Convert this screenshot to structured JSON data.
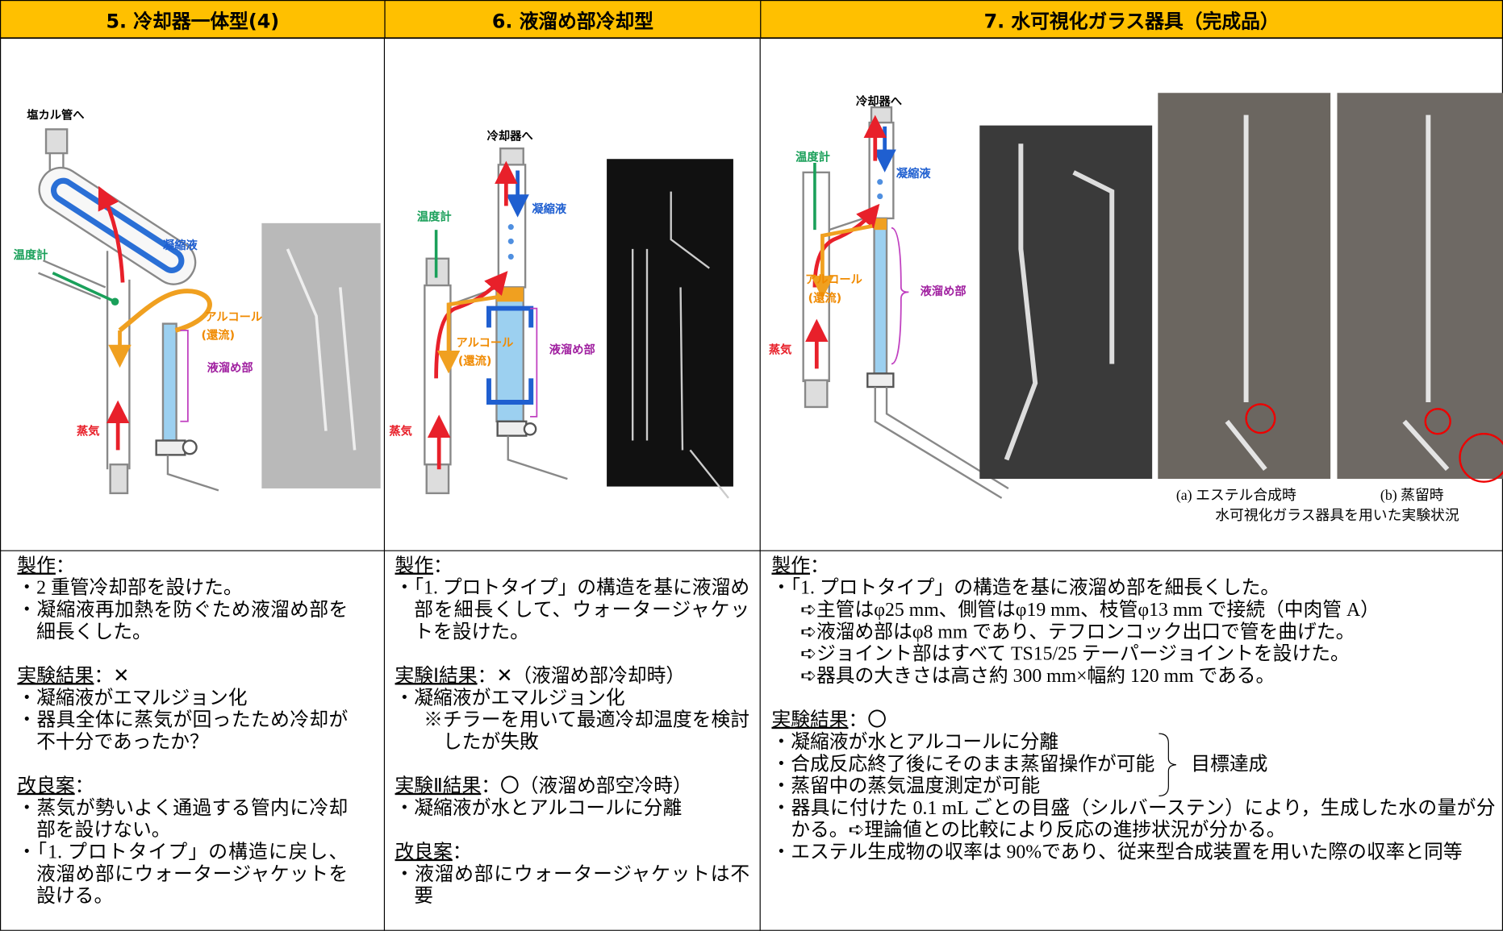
{
  "columns": [
    {
      "header": "5. 冷却器一体型(4)",
      "figure_labels": [
        "塩カル管へ",
        "凝縮液",
        "温度計",
        "アルコール",
        "(還流)",
        "液溜め部",
        "蒸気"
      ],
      "sections": [
        {
          "heading": "製作",
          "suffix": "：",
          "items": [
            "・2 重管冷却部を設けた。",
            "・凝縮液再加熱を防ぐため液溜め部を細長くした。"
          ]
        },
        {
          "heading": "実験結果",
          "suffix": "：✕",
          "items": [
            "・凝縮液がエマルジョン化",
            "・器具全体に蒸気が回ったため冷却が不十分であったか？"
          ]
        },
        {
          "heading": "改良案",
          "suffix": "：",
          "items": [
            "・蒸気が勢いよく通過する管内に冷却部を設けない。",
            "・「1. プロトタイプ」の構造に戻し、液溜め部にウォータージャケットを設ける。"
          ]
        }
      ]
    },
    {
      "header": "6. 液溜め部冷却型",
      "figure_labels": [
        "冷却器へ",
        "凝縮液",
        "温度計",
        "アルコール",
        "(還流)",
        "液溜め部",
        "蒸気"
      ],
      "sections": [
        {
          "heading": "製作",
          "suffix": "：",
          "items": [
            "・「1. プロトタイプ」の構造を基に液溜め部を細長くして、ウォータージャケットを設けた。"
          ]
        },
        {
          "heading": "実験Ⅰ結果",
          "suffix": "：✕（液溜め部冷却時）",
          "items": [
            "・凝縮液がエマルジョン化",
            "※チラーを用いて最適冷却温度を検討したが失敗"
          ]
        },
        {
          "heading": "実験Ⅱ結果",
          "suffix": "：〇（液溜め部空冷時）",
          "items": [
            "・凝縮液が水とアルコールに分離"
          ]
        },
        {
          "heading": "改良案",
          "suffix": "：",
          "items": [
            "・液溜め部にウォータージャケットは不要"
          ]
        }
      ]
    },
    {
      "header": "7. 水可視化ガラス器具（完成品）",
      "figure_labels": [
        "冷却器へ",
        "温度計",
        "凝縮液",
        "アルコール",
        "(還流)",
        "液溜め部",
        "蒸気"
      ],
      "captions": [
        "(a) エステル合成時",
        "(b) 蒸留時",
        "水可視化ガラス器具を用いた実験状況"
      ],
      "sections": [
        {
          "heading": "製作",
          "suffix": "：",
          "items": [
            "・「1. プロトタイプ」の構造を基に液溜め部を細長くした。",
            "➪主管はφ25 mm、側管はφ19 mm、枝管φ13 mm で接続（中肉管 A）",
            "➪液溜め部はφ8 mm であり、テフロンコック出口で管を曲げた。",
            "➪ジョイント部はすべて TS15/25 テーパージョイントを設けた。",
            "➪器具の大きさは高さ約 300 mm×幅約 120 mm である。"
          ]
        },
        {
          "heading": "実験結果",
          "suffix": "：〇",
          "group_items": [
            "・凝縮液が水とアルコールに分離",
            "・合成反応終了後にそのまま蒸留操作が可能",
            "・蒸留中の蒸気温度測定が可能"
          ],
          "group_label": "目標達成",
          "items": [
            "・器具に付けた 0.1 mL ごとの目盛（シルバーステン）により，生成した水の量が分かる。➪理論値との比較により反応の進捗状況が分かる。",
            "・エステル生成物の収率は 90%であり、従来型合成装置を用いた際の収率と同等"
          ]
        }
      ]
    }
  ]
}
